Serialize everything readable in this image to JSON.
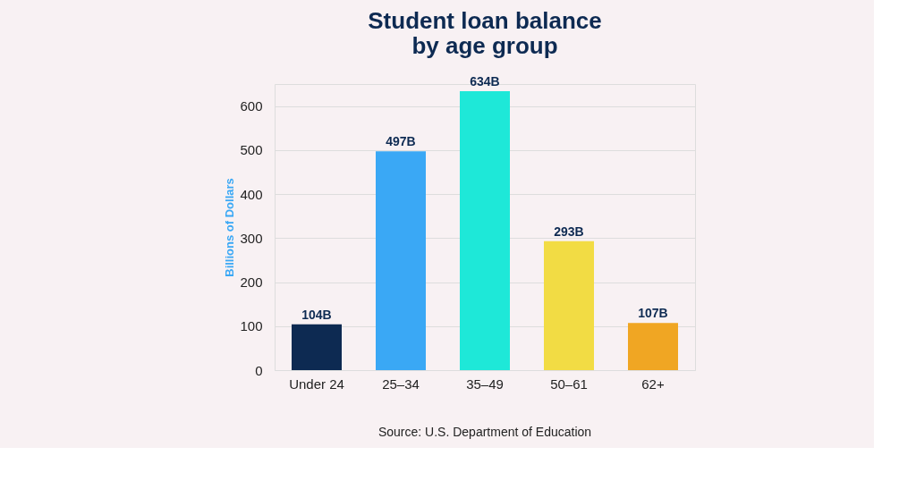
{
  "chart_data": {
    "type": "bar",
    "title": "Student loan balance by age group",
    "ylabel": "Billions of Dollars",
    "categories": [
      "Under 24",
      "25–34",
      "35–49",
      "50–61",
      "62+"
    ],
    "values": [
      104,
      497,
      634,
      293,
      107
    ],
    "colors": [
      "#0d2a52",
      "#3aa8f5",
      "#1ee8d8",
      "#f2dc44",
      "#f0a623"
    ],
    "value_labels": [
      "104B",
      "497B",
      "634B",
      "293B",
      "107B"
    ],
    "ylim": [
      0,
      650
    ],
    "yticks": [
      0,
      100,
      200,
      300,
      400,
      500,
      600
    ],
    "grid": "y",
    "annotations": [
      "Source: U.S. Department of Education"
    ]
  }
}
